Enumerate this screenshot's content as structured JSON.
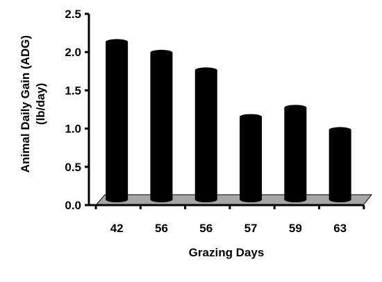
{
  "chart_data": {
    "type": "bar",
    "categories": [
      "42",
      "56",
      "56",
      "57",
      "59",
      "63"
    ],
    "values": [
      2.17,
      2.03,
      1.8,
      1.19,
      1.31,
      1.02
    ],
    "xlabel": "Grazing Days",
    "ylabel_line1": "Animal Daily Gain (ADG)",
    "ylabel_line2": "(lb/day)",
    "ylim": [
      0,
      2.5
    ],
    "yticks": [
      "0.0",
      "0.5",
      "1.0",
      "1.5",
      "2.0",
      "2.5"
    ],
    "grid": false,
    "legend": "none",
    "bar_color": "#000000",
    "floor_color": "#a6a6a6"
  }
}
